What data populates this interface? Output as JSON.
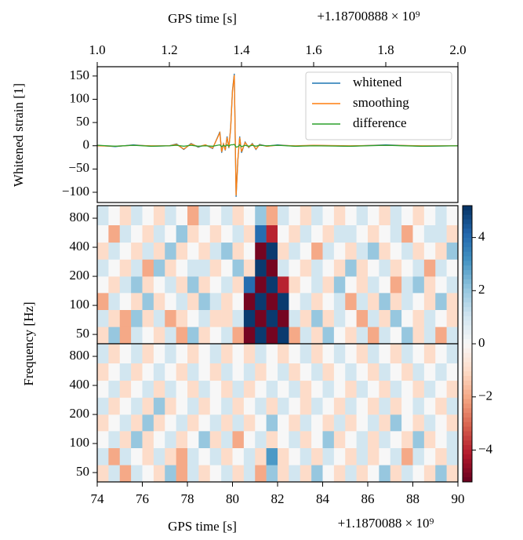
{
  "chart_data": [
    {
      "type": "line",
      "xlabel": "GPS time [s]",
      "offset": "+1.18700888 × 10⁹",
      "ylabel": "Whitened strain [1]",
      "xlim": [
        1.0,
        2.0
      ],
      "xticks": [
        {
          "value": 1.0,
          "label": "1.0"
        },
        1.2,
        1.4,
        1.6,
        1.8,
        {
          "value": 2.0,
          "label": "2.0"
        }
      ],
      "ylim": [
        -122,
        170
      ],
      "yticks": [
        150,
        100,
        50,
        0,
        {
          "value": -50,
          "label": "−50"
        },
        {
          "value": -100,
          "label": "−100"
        }
      ],
      "legend": "upper right",
      "x": [
        1.0,
        1.05,
        1.1,
        1.15,
        1.2,
        1.22,
        1.24,
        1.26,
        1.28,
        1.3,
        1.32,
        1.34,
        1.345,
        1.35,
        1.355,
        1.36,
        1.365,
        1.37,
        1.375,
        1.38,
        1.385,
        1.39,
        1.395,
        1.4,
        1.41,
        1.42,
        1.43,
        1.44,
        1.45,
        1.47,
        1.5,
        1.55,
        1.6,
        1.7,
        1.8,
        1.9,
        2.0
      ],
      "series": [
        {
          "name": "whitened",
          "color": "#1f77b4",
          "values": [
            1,
            -2,
            2,
            -1,
            0,
            4,
            -8,
            5,
            -3,
            2,
            -6,
            30,
            -15,
            5,
            -10,
            20,
            -5,
            40,
            120,
            155,
            -110,
            -30,
            20,
            -15,
            8,
            -4,
            5,
            -8,
            3,
            -1,
            2,
            -1,
            1,
            -1,
            2,
            -1,
            0
          ]
        },
        {
          "name": "smoothing",
          "color": "#ff7f0e",
          "values": [
            0,
            -1,
            1,
            0,
            0,
            3,
            -7,
            4,
            -2,
            2,
            -5,
            28,
            -13,
            4,
            -9,
            18,
            -4,
            38,
            118,
            152,
            -107,
            -28,
            18,
            -13,
            7,
            -3,
            4,
            -7,
            2,
            -1,
            1,
            0,
            1,
            0,
            1,
            0,
            0
          ]
        },
        {
          "name": "difference",
          "color": "#2ca02c",
          "values": [
            1,
            -1,
            1,
            -1,
            0,
            1,
            -1,
            1,
            -1,
            0,
            -1,
            2,
            -2,
            1,
            -1,
            2,
            -1,
            2,
            2,
            3,
            -3,
            -2,
            2,
            -2,
            1,
            -1,
            1,
            -1,
            1,
            0,
            1,
            -1,
            0,
            -1,
            1,
            -1,
            0
          ]
        }
      ]
    },
    {
      "type": "heatmap",
      "ylabel": "Frequency [Hz]",
      "log_y": true,
      "xlim": [
        74,
        90
      ],
      "ylim": [
        40,
        1080
      ],
      "yticks": [
        50,
        100,
        200,
        400,
        800
      ],
      "clim": [
        -5.2,
        5.2
      ],
      "cticks": [
        4,
        2,
        0,
        {
          "value": -2,
          "label": "−2"
        },
        {
          "value": -4,
          "label": "−4"
        }
      ],
      "colormap": [
        "#67001f",
        "#b2182b",
        "#d6604d",
        "#f4a582",
        "#fddbc7",
        "#f7f7f7",
        "#d1e5f0",
        "#92c5de",
        "#4393c3",
        "#2166ac",
        "#053061"
      ],
      "x_edges": [
        74,
        74.5,
        75,
        75.5,
        76,
        76.5,
        77,
        77.5,
        78,
        78.5,
        79,
        79.5,
        80,
        80.5,
        81,
        81.5,
        82,
        82.5,
        83,
        83.5,
        84,
        84.5,
        85,
        85.5,
        86,
        86.5,
        87,
        87.5,
        88,
        88.5,
        89,
        89.5,
        90
      ],
      "y_edges": [
        40,
        60,
        90,
        135,
        200,
        300,
        450,
        680,
        1080
      ],
      "z": [
        [
          -1,
          2,
          -2,
          1,
          0,
          -1,
          1,
          -2,
          2,
          -1,
          0,
          1,
          -2,
          -5,
          5,
          -5,
          5,
          -2,
          1,
          -1,
          2,
          0,
          -1,
          1,
          -2,
          1,
          0,
          2,
          -1,
          1,
          -2,
          1
        ],
        [
          1,
          -1,
          -2,
          2,
          -1,
          1,
          -2,
          -1,
          0,
          1,
          -1,
          -1,
          1,
          5,
          -5,
          5,
          -5,
          1,
          -1,
          2,
          -1,
          1,
          0,
          -2,
          1,
          -1,
          2,
          0,
          -1,
          1,
          0,
          -1
        ],
        [
          -2,
          1,
          0,
          -1,
          2,
          -1,
          0,
          1,
          -1,
          2,
          1,
          -1,
          0,
          -5,
          5,
          -5,
          5,
          0,
          1,
          -1,
          0,
          1,
          -2,
          1,
          -1,
          2,
          -1,
          1,
          0,
          -1,
          2,
          -1
        ],
        [
          0,
          -1,
          1,
          2,
          -1,
          0,
          1,
          -1,
          2,
          -1,
          0,
          1,
          -1,
          4,
          -5,
          5,
          -4,
          -1,
          0,
          1,
          -1,
          2,
          0,
          -1,
          1,
          0,
          -2,
          1,
          2,
          -1,
          0,
          1
        ],
        [
          1,
          0,
          -1,
          1,
          -2,
          2,
          -1,
          0,
          1,
          1,
          -1,
          0,
          2,
          -1,
          5,
          -5,
          1,
          0,
          -1,
          1,
          0,
          -1,
          2,
          -1,
          0,
          1,
          -1,
          0,
          1,
          -2,
          1,
          0
        ],
        [
          -1,
          1,
          0,
          -1,
          1,
          -1,
          2,
          -1,
          0,
          -1,
          1,
          2,
          -1,
          0,
          -5,
          5,
          -1,
          1,
          0,
          -2,
          1,
          0,
          -1,
          1,
          2,
          -1,
          0,
          1,
          -1,
          0,
          -1,
          2
        ],
        [
          0,
          -2,
          1,
          0,
          -1,
          1,
          0,
          2,
          -1,
          0,
          -1,
          0,
          1,
          -1,
          4,
          -4,
          0,
          -1,
          1,
          0,
          -1,
          1,
          1,
          0,
          -1,
          0,
          1,
          -2,
          0,
          1,
          1,
          -1
        ],
        [
          1,
          0,
          -1,
          1,
          0,
          -1,
          1,
          0,
          -2,
          1,
          0,
          1,
          -1,
          0,
          2,
          -2,
          1,
          0,
          -1,
          1,
          0,
          -1,
          0,
          1,
          0,
          -1,
          1,
          0,
          -1,
          0,
          1,
          0
        ]
      ]
    },
    {
      "type": "heatmap",
      "log_y": true,
      "xlabel": "GPS time [s]",
      "offset": "+1.1870088 × 10⁹",
      "xlim": [
        74,
        90
      ],
      "xticks": [
        74,
        76,
        78,
        80,
        82,
        84,
        86,
        88,
        90
      ],
      "ylim": [
        40,
        1080
      ],
      "yticks": [
        50,
        100,
        200,
        400,
        800
      ],
      "x_edges": [
        74,
        74.5,
        75,
        75.5,
        76,
        76.5,
        77,
        77.5,
        78,
        78.5,
        79,
        79.5,
        80,
        80.5,
        81,
        81.5,
        82,
        82.5,
        83,
        83.5,
        84,
        84.5,
        85,
        85.5,
        86,
        86.5,
        87,
        87.5,
        88,
        88.5,
        89,
        89.5,
        90
      ],
      "y_edges": [
        40,
        60,
        90,
        135,
        200,
        300,
        450,
        680,
        1080
      ],
      "z": [
        [
          -1,
          1,
          -2,
          1,
          0,
          -1,
          2,
          -2,
          1,
          -1,
          0,
          1,
          -1,
          1,
          -2,
          2,
          -1,
          1,
          -1,
          2,
          0,
          -1,
          1,
          -1,
          0,
          2,
          -1,
          1,
          0,
          -1,
          2,
          -1
        ],
        [
          1,
          -2,
          1,
          0,
          -1,
          1,
          -1,
          -2,
          1,
          0,
          1,
          -1,
          0,
          1,
          -1,
          3,
          -1,
          0,
          1,
          -1,
          1,
          0,
          -1,
          1,
          -1,
          0,
          1,
          -2,
          1,
          0,
          -1,
          1
        ],
        [
          0,
          1,
          -1,
          2,
          -1,
          0,
          1,
          -1,
          0,
          2,
          -1,
          1,
          -2,
          0,
          1,
          -1,
          0,
          1,
          -1,
          0,
          2,
          -1,
          0,
          1,
          -1,
          1,
          0,
          -1,
          2,
          -1,
          0,
          1
        ],
        [
          -1,
          0,
          1,
          -1,
          2,
          -1,
          0,
          1,
          -1,
          0,
          1,
          -1,
          1,
          -1,
          0,
          2,
          0,
          -1,
          1,
          0,
          -1,
          1,
          -1,
          0,
          1,
          -1,
          2,
          0,
          -1,
          1,
          0,
          -1
        ],
        [
          1,
          -1,
          0,
          1,
          -1,
          2,
          -1,
          0,
          1,
          -1,
          0,
          1,
          -1,
          0,
          1,
          -1,
          1,
          0,
          -1,
          1,
          0,
          -1,
          1,
          0,
          -1,
          1,
          -1,
          0,
          1,
          0,
          -1,
          1
        ],
        [
          0,
          1,
          -1,
          0,
          1,
          -1,
          1,
          0,
          -1,
          1,
          0,
          -1,
          1,
          -1,
          0,
          1,
          0,
          1,
          -1,
          0,
          1,
          0,
          -1,
          1,
          0,
          -1,
          1,
          0,
          -1,
          1,
          0,
          -1
        ],
        [
          -1,
          0,
          1,
          -1,
          0,
          1,
          0,
          -1,
          1,
          0,
          -1,
          1,
          0,
          1,
          -1,
          0,
          1,
          -1,
          0,
          1,
          -1,
          0,
          1,
          0,
          -1,
          1,
          0,
          -1,
          1,
          0,
          1,
          0
        ],
        [
          1,
          -1,
          0,
          1,
          -1,
          0,
          1,
          0,
          -1,
          0,
          1,
          -1,
          0,
          -1,
          1,
          0,
          -1,
          0,
          1,
          -1,
          0,
          1,
          0,
          -1,
          1,
          0,
          -1,
          1,
          0,
          -1,
          0,
          1
        ]
      ]
    }
  ]
}
